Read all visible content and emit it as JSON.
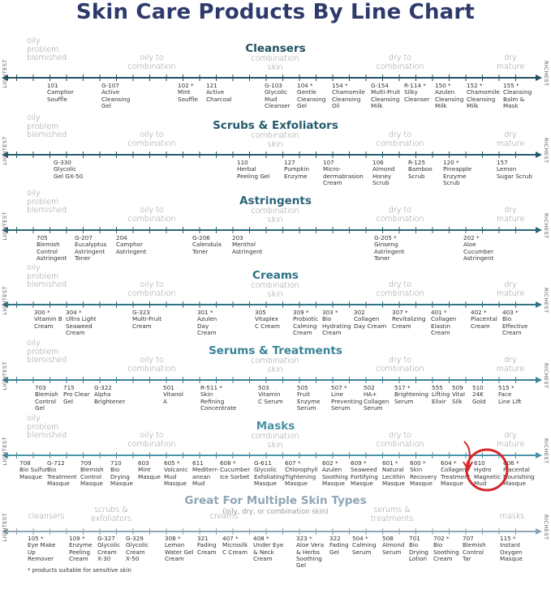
{
  "title": "Skin Care Products By Line Chart",
  "axis_labels": {
    "left": "LIGHTEST",
    "right": "RICHEST"
  },
  "skin_types": [
    "oily\nproblem\nblemished",
    "oily to\ncombination",
    "combination\nskin",
    "dry to\ncombination",
    "dry\nmature"
  ],
  "colors": {
    "title": "#2d3a6b",
    "highlight": "#d62828"
  },
  "sections": [
    {
      "title": "Cleansers",
      "color": "#1f4f60",
      "products": [
        {
          "code": "101",
          "name": "Camphor\nSouffle"
        },
        {
          "code": "G-107",
          "name": "Active\nCleansing\nGel"
        },
        {
          "code": "102 *",
          "name": "Mint\nSouffle"
        },
        {
          "code": "121",
          "name": "Active\nCharcoal"
        },
        {
          "code": "G-103",
          "name": "Glycolic\nMud\nCleanser"
        },
        {
          "code": "104 *",
          "name": "Gentle\nCleansing\nGel"
        },
        {
          "code": "154 *",
          "name": "Chamomile\nCleansing\nOil"
        },
        {
          "code": "G-154",
          "name": "Multi-Fruit\nCleansing\nMilk"
        },
        {
          "code": "R-114 *",
          "name": "Silky\nCleanser"
        },
        {
          "code": "150 *",
          "name": "Azulen\nCleansing\nMilk"
        },
        {
          "code": "152 *",
          "name": "Chamomile\nCleansing\nMilk"
        },
        {
          "code": "155 *",
          "name": "Cleansing\nBalm &\nMask"
        }
      ]
    },
    {
      "title": "Scrubs & Exfoliators",
      "color": "#245a6d",
      "products": [
        {
          "code": "G-330",
          "name": "Glycolic\nGel GX-50"
        },
        {
          "code": "110",
          "name": "Herbal\nPeeling Gel"
        },
        {
          "code": "127",
          "name": "Pumpkin\nEnzyme"
        },
        {
          "code": "107",
          "name": "Micro-\ndermabrasion\nCream"
        },
        {
          "code": "106",
          "name": "Almond\nHoney\nScrub"
        },
        {
          "code": "R-125",
          "name": "Bamboo\nScrub"
        },
        {
          "code": "120 *",
          "name": "Pineapple\nEnzyme\nScrub"
        },
        {
          "code": "157",
          "name": "Lemon\nSugar Scrub"
        }
      ]
    },
    {
      "title": "Astringents",
      "color": "#2a6578",
      "products": [
        {
          "code": "705",
          "name": "Blemish\nControl\nAstringent"
        },
        {
          "code": "G-207",
          "name": "Eucalyptus\nAstringent\nToner"
        },
        {
          "code": "204",
          "name": "Camphor\nAstringent"
        },
        {
          "code": "G-206",
          "name": "Calendula\nToner"
        },
        {
          "code": "203",
          "name": "Menthol\nAstringent"
        },
        {
          "code": "G-205 *",
          "name": "Ginseng\nAstringent\nToner"
        },
        {
          "code": "202 *",
          "name": "Aloe\nCucumber\nAstringent"
        }
      ]
    },
    {
      "title": "Creams",
      "color": "#307286",
      "products": [
        {
          "code": "300 *",
          "name": "Vitamin B\nCream"
        },
        {
          "code": "304 *",
          "name": "Ultra Light\nSeaweed\nCream"
        },
        {
          "code": "G-323",
          "name": "Multi-Fruit\nCream"
        },
        {
          "code": "301 *",
          "name": "Azulen\nDay\nCream"
        },
        {
          "code": "305",
          "name": "Vitaplex\nC Cream"
        },
        {
          "code": "309 *",
          "name": "Probiotic\nCalming\nCream"
        },
        {
          "code": "303 *",
          "name": "Bio\nHydrating\nCream"
        },
        {
          "code": "302",
          "name": "Collagen\nDay Cream"
        },
        {
          "code": "307 *",
          "name": "Revitalizing\nCream"
        },
        {
          "code": "401 *",
          "name": "Collagen\nElastin\nCream"
        },
        {
          "code": "402 *",
          "name": "Placental\nCream"
        },
        {
          "code": "403 *",
          "name": "Bio\nEffective\nCream"
        }
      ]
    },
    {
      "title": "Serums & Treatments",
      "color": "#3a8398",
      "products": [
        {
          "code": "703",
          "name": "Blemish\nControl\nGel"
        },
        {
          "code": "715",
          "name": "Pro Clear\nGel"
        },
        {
          "code": "G-322",
          "name": "Alpha\nBrightener"
        },
        {
          "code": "501",
          "name": "Vitanol\nA"
        },
        {
          "code": "R-511 *",
          "name": "Skin\nRefining\nConcentrate"
        },
        {
          "code": "503",
          "name": "Vitamin\nC Serum"
        },
        {
          "code": "505",
          "name": "Fruit\nEnzyme\nSerum"
        },
        {
          "code": "507 *",
          "name": "Line\nPreventing\nSerum"
        },
        {
          "code": "502",
          "name": "HA+\nCollagen\nSerum"
        },
        {
          "code": "517 *",
          "name": "Brightening\nSerum"
        },
        {
          "code": "555",
          "name": "Lifting\nElixir"
        },
        {
          "code": "509",
          "name": "Vital\nSilk"
        },
        {
          "code": "510",
          "name": "24K\nGold"
        },
        {
          "code": "515 *",
          "name": "Face\nLine Lift"
        }
      ]
    },
    {
      "title": "Masks",
      "color": "#4a93a8",
      "products": [
        {
          "code": "708",
          "name": "Bio Sulfur\nMasque"
        },
        {
          "code": "G-712",
          "name": "Bio\nTreatment\nMasque"
        },
        {
          "code": "709",
          "name": "Blemish\nControl\nMasque"
        },
        {
          "code": "710",
          "name": "Bio\nDrying\nMasque"
        },
        {
          "code": "603",
          "name": "Mint\nMasque"
        },
        {
          "code": "605 *",
          "name": "Volcanic\nMud\nMasque"
        },
        {
          "code": "611",
          "name": "Mediterr-\nanean\nMud"
        },
        {
          "code": "608 *",
          "name": "Cucumber\nIce Sorbet"
        },
        {
          "code": "G-611",
          "name": "Glycolic\nExfoliating\nMasque"
        },
        {
          "code": "607 *",
          "name": "Chlorophyll\nTightening\nMasque"
        },
        {
          "code": "602 *",
          "name": "Azulen\nSoothing\nMasque"
        },
        {
          "code": "609 *",
          "name": "Seaweed\nFortifying\nMasque"
        },
        {
          "code": "601 *",
          "name": "Natural\nLecithin\nMasque"
        },
        {
          "code": "600 *",
          "name": "Skin\nRecovery\nMasque"
        },
        {
          "code": "604 *",
          "name": "Collagen\nTreatment\nMasque"
        },
        {
          "code": "610",
          "name": "Hydro\nMagnetic\nMud",
          "highlighted": true
        },
        {
          "code": "606 *",
          "name": "Placental\nNourishing\nMasque"
        }
      ]
    }
  ],
  "multi": {
    "title": "Great For Multiple Skin Types",
    "subtitle": "(oily, dry, or combination skin)",
    "color": "#8ea6b5",
    "categories": [
      "cleansers",
      "scrubs &\nexfoliators",
      "creams",
      "serums &\ntreatments",
      "masks"
    ],
    "products": [
      {
        "code": "105 *",
        "name": "Eye Make\nUp\nRemover"
      },
      {
        "code": "109 *",
        "name": "Enzyme\nPeeling\nCream"
      },
      {
        "code": "G-327",
        "name": "Glycolic\nCream\nX-30"
      },
      {
        "code": "G-329",
        "name": "Glycolic\nCream\nX-50"
      },
      {
        "code": "308 *",
        "name": "Lemon\nWater Gel\nCream"
      },
      {
        "code": "321",
        "name": "Fading\nCream"
      },
      {
        "code": "407 *",
        "name": "Microsilk\nC Cream"
      },
      {
        "code": "408 *",
        "name": "Under Eye\n& Neck\nCream"
      },
      {
        "code": "323 *",
        "name": "Aloe Vera\n& Herbs\nSoothing\nGel"
      },
      {
        "code": "322",
        "name": "Fading\nGel"
      },
      {
        "code": "504 *",
        "name": "Calming\nSerum"
      },
      {
        "code": "508",
        "name": "Almond\nSerum"
      },
      {
        "code": "701",
        "name": "Bio\nDrying\nLotion"
      },
      {
        "code": "702 *",
        "name": "Bio\nSoothing\nCream"
      },
      {
        "code": "707",
        "name": "Blemish\nControl\nTar"
      },
      {
        "code": "115 *",
        "name": "Instant\nOxygen\nMasque"
      }
    ]
  },
  "footnote": "* products suitable for sensitive skin"
}
